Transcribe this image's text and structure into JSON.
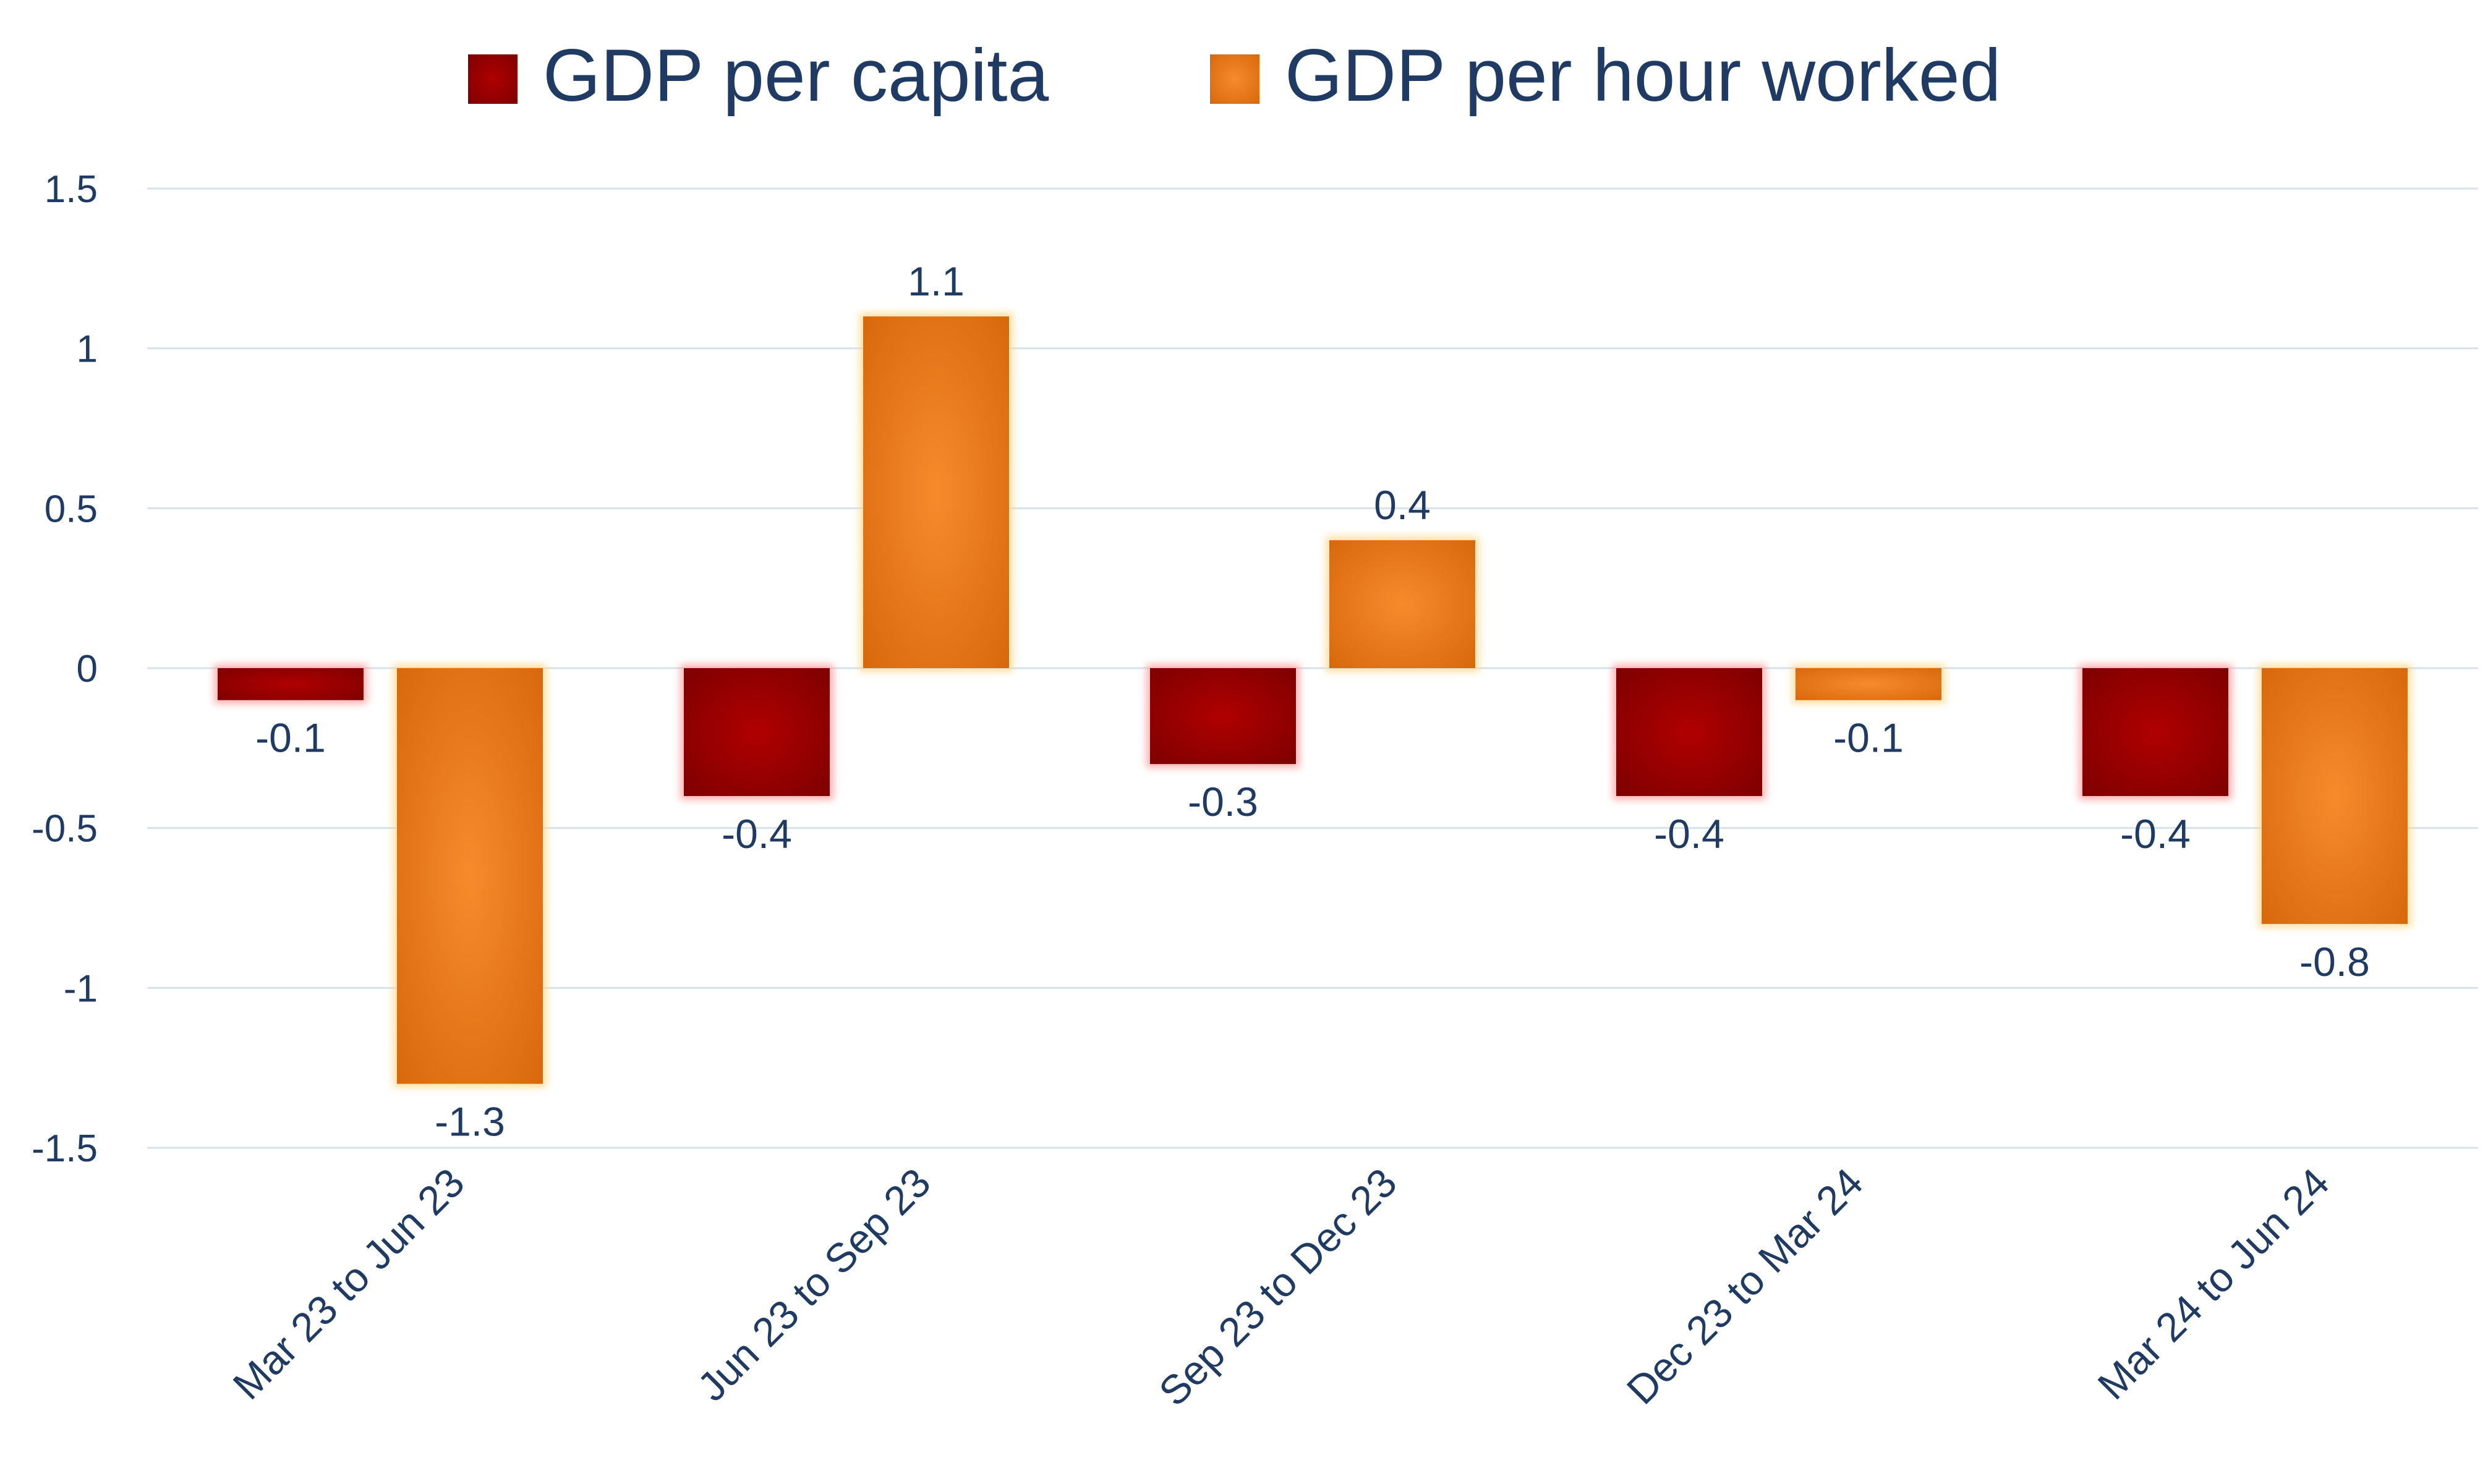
{
  "chart_data": {
    "type": "bar",
    "title": "",
    "xlabel": "",
    "ylabel": "",
    "categories": [
      "Mar 23 to Jun 23",
      "Jun 23 to Sep 23",
      "Sep 23 to Dec 23",
      "Dec 23 to Mar 24",
      "Mar 24 to Jun 24"
    ],
    "series": [
      {
        "name": "GDP per capita",
        "values": [
          -0.1,
          -0.4,
          -0.3,
          -0.4,
          -0.4
        ],
        "color": "#a30000"
      },
      {
        "name": "GDP per hour worked",
        "values": [
          -1.3,
          1.1,
          0.4,
          -0.1,
          -0.8
        ],
        "color": "#ef7d22"
      }
    ],
    "ylim": [
      -1.5,
      1.5
    ],
    "yticks": [
      1.5,
      1,
      0.5,
      0,
      -0.5,
      -1,
      -1.5
    ],
    "ytick_labels": [
      "1.5",
      "1",
      "0.5",
      "0",
      "-0.5",
      "-1",
      "-1.5"
    ],
    "grid": true,
    "legend_position": "top-center",
    "data_labels": [
      [
        "-0.1",
        "-0.4",
        "-0.3",
        "-0.4",
        "-0.4"
      ],
      [
        "-1.3",
        "1.1",
        "0.4",
        "-0.1",
        "-0.8"
      ]
    ]
  }
}
